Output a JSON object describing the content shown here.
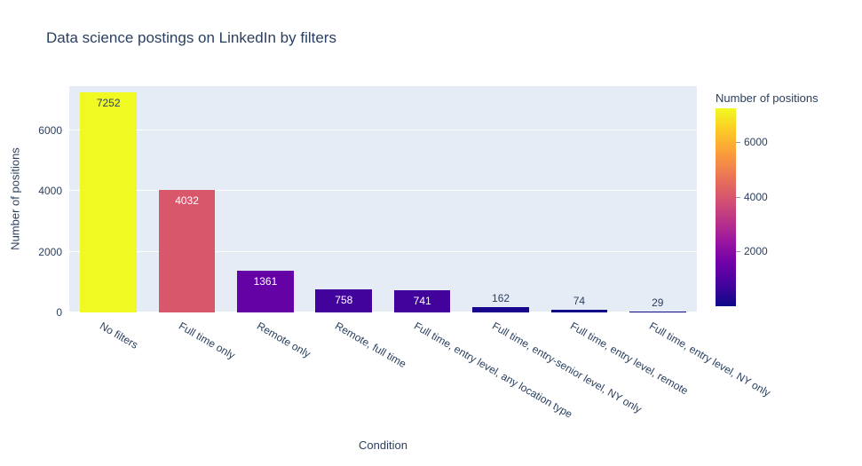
{
  "chart_data": {
    "type": "bar",
    "title": "Data science postings on LinkedIn by filters",
    "xlabel": "Condition",
    "ylabel": "Number of positions",
    "categories": [
      "No filters",
      "Full time only",
      "Remote only",
      "Remote, full time",
      "Full time, entry level, any location type",
      "Full time, entry-senior level, NY only",
      "Full time, entry level, remote",
      "Full time, entry level, NY only"
    ],
    "values": [
      7252,
      4032,
      1361,
      758,
      741,
      162,
      74,
      29
    ],
    "ylim": [
      0,
      7450
    ],
    "yticks": [
      0,
      2000,
      4000,
      6000
    ],
    "grid": true,
    "colormap": "plasma",
    "legend_position": "colorbar-right",
    "bar_colors": [
      "#f0f921",
      "#d8576b",
      "#6402a5",
      "#42039d",
      "#41039c",
      "#18078c",
      "#100888",
      "#0e0887"
    ],
    "value_labels": [
      {
        "text": "7252",
        "placement": "inside",
        "color": "#2a3f5f"
      },
      {
        "text": "4032",
        "placement": "inside",
        "color": "#ffffff"
      },
      {
        "text": "1361",
        "placement": "inside",
        "color": "#ffffff"
      },
      {
        "text": "758",
        "placement": "inside",
        "color": "#ffffff"
      },
      {
        "text": "741",
        "placement": "inside",
        "color": "#ffffff"
      },
      {
        "text": "162",
        "placement": "outside",
        "color": "#2a3f5f"
      },
      {
        "text": "74",
        "placement": "outside",
        "color": "#2a3f5f"
      },
      {
        "text": "29",
        "placement": "outside",
        "color": "#2a3f5f"
      }
    ]
  },
  "colorbar": {
    "title": "Number of positions",
    "tick_values": [
      2000,
      4000,
      6000
    ],
    "range": [
      0,
      7252
    ],
    "gradient": [
      "#0d0887",
      "#46039f",
      "#7201a8",
      "#9c179e",
      "#bd3786",
      "#d8576b",
      "#ed7953",
      "#fb9f3a",
      "#fdca26",
      "#f0f921"
    ]
  },
  "colors": {
    "plot_bg": "#e5ecf6",
    "grid": "#ffffff",
    "text": "#2a3f5f",
    "paper_bg": "#ffffff"
  }
}
